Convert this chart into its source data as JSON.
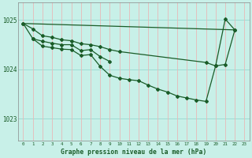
{
  "background_color": "#b0e8e0",
  "plot_bg_color": "#c8f0e8",
  "grid_color_h": "#98d8d0",
  "grid_color_v": "#e8b8b8",
  "line_color": "#1a5c28",
  "xlabel": "Graphe pression niveau de la mer (hPa)",
  "xlim": [
    -0.5,
    23.5
  ],
  "ylim": [
    1022.55,
    1025.35
  ],
  "yticks": [
    1023,
    1024,
    1025
  ],
  "xticks": [
    0,
    1,
    2,
    3,
    4,
    5,
    6,
    7,
    8,
    9,
    10,
    11,
    12,
    13,
    14,
    15,
    16,
    17,
    18,
    19,
    20,
    21,
    22,
    23
  ],
  "line1_x": [
    0,
    1,
    2,
    3,
    4,
    5,
    6,
    7,
    8,
    9,
    10,
    19,
    20,
    21,
    22
  ],
  "line1_y": [
    1024.93,
    1024.82,
    1024.68,
    1024.65,
    1024.6,
    1024.58,
    1024.52,
    1024.5,
    1024.46,
    1024.4,
    1024.36,
    1024.14,
    1024.07,
    1024.1,
    1024.8
  ],
  "line_trend_x": [
    0,
    22
  ],
  "line_trend_y": [
    1024.93,
    1024.8
  ],
  "line2_x": [
    0,
    1,
    2,
    3,
    4,
    5,
    6,
    7,
    8,
    9,
    10,
    11,
    12,
    13,
    14,
    15,
    16,
    17,
    18,
    19,
    20,
    21,
    22
  ],
  "line2_y": [
    1024.93,
    1024.62,
    1024.47,
    1024.44,
    1024.41,
    1024.4,
    1024.28,
    1024.3,
    1024.06,
    1023.88,
    1023.82,
    1023.79,
    1023.77,
    1023.68,
    1023.6,
    1023.54,
    1023.46,
    1023.42,
    1023.38,
    1023.35,
    1024.07,
    1025.02,
    1024.8
  ],
  "line3_x": [
    1,
    2,
    3,
    4,
    5,
    6,
    7,
    8,
    9
  ],
  "line3_y": [
    1024.62,
    1024.57,
    1024.53,
    1024.5,
    1024.5,
    1024.38,
    1024.4,
    1024.26,
    1024.16
  ]
}
